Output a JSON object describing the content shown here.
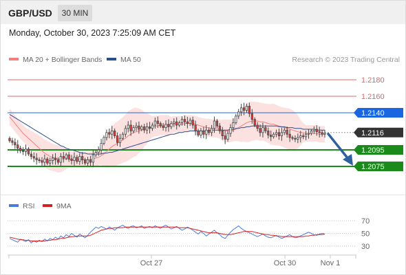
{
  "header": {
    "symbol": "GBP/USD",
    "timeframe": "30 MIN"
  },
  "datetime": "Monday, October 30, 2023 7:25:09 AM CET",
  "attribution": "Research © 2023 Trading Central",
  "legend": {
    "ma20_label": "MA 20 + Bollinger Bands",
    "ma50_label": "MA 50",
    "rsi_label": "RSI",
    "rsi_ma_label": "9MA"
  },
  "colors": {
    "ma20": "#f08080",
    "ma50": "#2a4d8c",
    "bands": "#fcdcdc",
    "up": "#ffffff",
    "down": "#e23b3b",
    "candle_border": "#444444",
    "resistance": "#e06666",
    "pivot": "#1a66e0",
    "support": "#1a8a1a",
    "current": "#333333",
    "arrow": "#2e5f9e",
    "rsi": "#4a7adc",
    "rsi_ma": "#d62020"
  },
  "chart_data": {
    "type": "candlestick",
    "x_tick_labels": [
      "Oct 27",
      "Oct 30",
      "Nov 1"
    ],
    "ylim": [
      1.205,
      1.2195
    ],
    "levels": [
      {
        "value": 1.218,
        "label": "1.2180",
        "kind": "resistance"
      },
      {
        "value": 1.216,
        "label": "1.2160",
        "kind": "resistance"
      },
      {
        "value": 1.214,
        "label": "1.2140",
        "kind": "pivot"
      },
      {
        "value": 1.2095,
        "label": "1.2095",
        "kind": "support"
      },
      {
        "value": 1.2075,
        "label": "1.2075",
        "kind": "support"
      }
    ],
    "current_price": {
      "value": 1.2116,
      "label": "1.2116"
    },
    "target_arrow": {
      "from": 1.2116,
      "to": 1.2075,
      "direction": "down"
    },
    "closes": [
      1.2106,
      1.2104,
      1.2101,
      1.2097,
      1.2094,
      1.2093,
      1.2096,
      1.209,
      1.2087,
      1.2085,
      1.2083,
      1.2082,
      1.208,
      1.2084,
      1.2079,
      1.2082,
      1.2085,
      1.2083,
      1.208,
      1.2087,
      1.2085,
      1.2089,
      1.2084,
      1.2082,
      1.2086,
      1.2081,
      1.2087,
      1.2083,
      1.2079,
      1.2083,
      1.208,
      1.2089,
      1.2092,
      1.2095,
      1.2103,
      1.211,
      1.2116,
      1.2114,
      1.2118,
      1.2112,
      1.2104,
      1.2109,
      1.2114,
      1.2121,
      1.2125,
      1.2118,
      1.2122,
      1.2124,
      1.212,
      1.2123,
      1.2119,
      1.2123,
      1.2121,
      1.2125,
      1.213,
      1.2127,
      1.2124,
      1.2122,
      1.2126,
      1.2123,
      1.2127,
      1.2129,
      1.2125,
      1.2128,
      1.2132,
      1.2129,
      1.2127,
      1.2131,
      1.2125,
      1.2118,
      1.2113,
      1.2118,
      1.2114,
      1.2119,
      1.2116,
      1.2121,
      1.213,
      1.2124,
      1.2118,
      1.2112,
      1.2108,
      1.2115,
      1.2122,
      1.2128,
      1.2136,
      1.2141,
      1.2146,
      1.2143,
      1.2148,
      1.2139,
      1.2132,
      1.2125,
      1.2121,
      1.2116,
      1.2122,
      1.2118,
      1.2113,
      1.2111,
      1.2114,
      1.2116,
      1.2112,
      1.2116,
      1.2119,
      1.2114,
      1.211,
      1.2109,
      1.2108,
      1.211,
      1.2112,
      1.2111,
      1.2114,
      1.2115,
      1.2118,
      1.212,
      1.2117,
      1.2116,
      1.2114,
      1.2115
    ],
    "ma20": [
      1.2135,
      1.2131,
      1.2127,
      1.2123,
      1.2119,
      1.2115,
      1.2112,
      1.2109,
      1.2106,
      1.2103,
      1.21,
      1.2097,
      1.2094,
      1.2091,
      1.2089,
      1.2087,
      1.2086,
      1.2085,
      1.2084,
      1.2084,
      1.2084,
      1.2084,
      1.2084,
      1.2083,
      1.2083,
      1.2083,
      1.2083,
      1.2083,
      1.2083,
      1.2083,
      1.2083,
      1.2084,
      1.2085,
      1.2086,
      1.2088,
      1.209,
      1.2093,
      1.2096,
      1.2099,
      1.2101,
      1.2103,
      1.2105,
      1.2107,
      1.2109,
      1.2112,
      1.2114,
      1.2116,
      1.2117,
      1.2118,
      1.2119,
      1.212,
      1.2121,
      1.2122,
      1.2123,
      1.2124,
      1.2124,
      1.2125,
      1.2125,
      1.2125,
      1.2125,
      1.2125,
      1.2126,
      1.2126,
      1.2126,
      1.2126,
      1.2127,
      1.2127,
      1.2127,
      1.2127,
      1.2126,
      1.2125,
      1.2124,
      1.2123,
      1.2122,
      1.2122,
      1.2121,
      1.2121,
      1.2121,
      1.212,
      1.2119,
      1.2118,
      1.2118,
      1.2118,
      1.2119,
      1.212,
      1.2122,
      1.2124,
      1.2126,
      1.2128,
      1.2129,
      1.213,
      1.213,
      1.213,
      1.2129,
      1.2129,
      1.2128,
      1.2127,
      1.2126,
      1.2126,
      1.2125,
      1.2124,
      1.2123,
      1.2122,
      1.2121,
      1.212,
      1.2119,
      1.2118,
      1.2117,
      1.2116,
      1.2116,
      1.2115,
      1.2115,
      1.2115,
      1.2115,
      1.2115,
      1.2114,
      1.2114,
      1.2114
    ],
    "ma50": [
      1.2138,
      1.2136,
      1.2134,
      1.2132,
      1.213,
      1.2128,
      1.2126,
      1.2124,
      1.2122,
      1.212,
      1.2118,
      1.2116,
      1.2114,
      1.2112,
      1.211,
      1.2108,
      1.2106,
      1.2104,
      1.2102,
      1.21,
      1.2099,
      1.2097,
      1.2096,
      1.2095,
      1.2094,
      1.2093,
      1.2092,
      1.2091,
      1.2091,
      1.209,
      1.209,
      1.209,
      1.209,
      1.209,
      1.209,
      1.2091,
      1.2091,
      1.2092,
      1.2092,
      1.2093,
      1.2094,
      1.2095,
      1.2096,
      1.2097,
      1.2098,
      1.2099,
      1.21,
      1.2101,
      1.2102,
      1.2103,
      1.2104,
      1.2105,
      1.2106,
      1.2107,
      1.2108,
      1.2109,
      1.211,
      1.2111,
      1.2112,
      1.2113,
      1.2114,
      1.2114,
      1.2115,
      1.2116,
      1.2116,
      1.2117,
      1.2117,
      1.2118,
      1.2118,
      1.2118,
      1.2118,
      1.2118,
      1.2118,
      1.2118,
      1.2118,
      1.2119,
      1.2119,
      1.2119,
      1.2119,
      1.2119,
      1.2119,
      1.2119,
      1.212,
      1.212,
      1.2121,
      1.2121,
      1.2122,
      1.2122,
      1.2123,
      1.2123,
      1.2124,
      1.2124,
      1.2124,
      1.2124,
      1.2124,
      1.2124,
      1.2124,
      1.2124,
      1.2124,
      1.2124,
      1.2123,
      1.2123,
      1.2123,
      1.2122,
      1.2122,
      1.2122,
      1.2121,
      1.2121,
      1.2121,
      1.212,
      1.212,
      1.212,
      1.212,
      1.212,
      1.2119,
      1.2119,
      1.2119,
      1.2119
    ],
    "rsi": {
      "ylim": [
        20,
        80
      ],
      "ticks": [
        70,
        50,
        30
      ],
      "rsi": [
        42,
        40,
        38,
        36,
        41,
        39,
        37,
        40,
        35,
        38,
        36,
        39,
        37,
        41,
        38,
        42,
        40,
        44,
        41,
        46,
        43,
        48,
        45,
        50,
        47,
        44,
        49,
        46,
        43,
        47,
        52,
        56,
        60,
        58,
        61,
        59,
        57,
        60,
        58,
        55,
        59,
        61,
        63,
        60,
        58,
        61,
        62,
        59,
        60,
        62,
        58,
        60,
        61,
        59,
        62,
        60,
        58,
        61,
        63,
        60,
        57,
        59,
        61,
        58,
        55,
        57,
        60,
        58,
        55,
        52,
        49,
        53,
        50,
        46,
        49,
        52,
        55,
        51,
        48,
        44,
        42,
        47,
        52,
        56,
        59,
        62,
        58,
        55,
        53,
        51,
        49,
        47,
        45,
        47,
        49,
        46,
        44,
        43,
        45,
        47,
        44,
        42,
        44,
        46,
        48,
        45,
        43,
        44,
        46,
        48,
        50,
        52,
        50,
        48,
        47,
        49,
        50,
        49
      ],
      "ma": [
        44,
        43,
        42,
        41,
        40,
        40,
        39,
        39,
        38,
        38,
        38,
        38,
        38,
        38,
        39,
        39,
        40,
        40,
        41,
        42,
        42,
        43,
        44,
        45,
        45,
        46,
        46,
        46,
        46,
        46,
        47,
        49,
        51,
        53,
        55,
        56,
        57,
        58,
        58,
        59,
        59,
        59,
        59,
        60,
        60,
        60,
        60,
        60,
        60,
        60,
        60,
        60,
        60,
        60,
        60,
        60,
        60,
        60,
        60,
        60,
        60,
        60,
        60,
        59,
        59,
        59,
        59,
        58,
        57,
        56,
        55,
        54,
        53,
        52,
        51,
        51,
        51,
        51,
        50,
        49,
        48,
        48,
        48,
        49,
        50,
        51,
        52,
        53,
        53,
        53,
        53,
        52,
        51,
        50,
        49,
        48,
        48,
        47,
        47,
        46,
        46,
        45,
        45,
        45,
        45,
        45,
        45,
        45,
        45,
        45,
        46,
        46,
        47,
        47,
        48,
        48,
        48,
        49
      ]
    }
  }
}
